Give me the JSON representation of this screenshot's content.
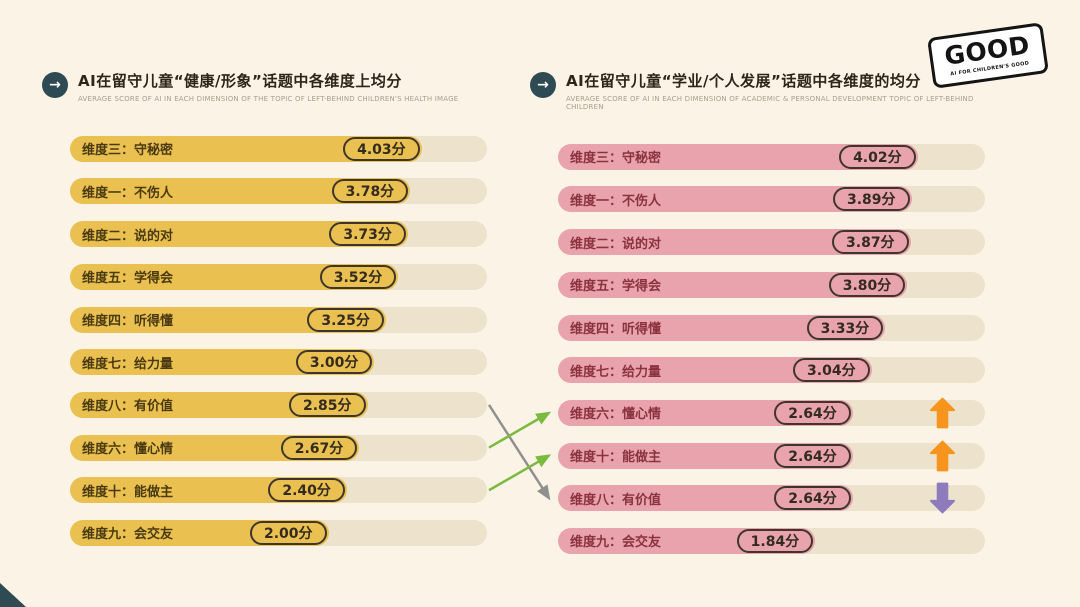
{
  "page": {
    "background": "#FAF3E6"
  },
  "icons": {
    "chart_bullet": "→"
  },
  "logo": {
    "text": "GOOD",
    "tagline": "AI FOR CHILDREN'S GOOD"
  },
  "trend_colors": {
    "up": "#F7941D",
    "down": "#8D7BBE"
  },
  "chart_data": [
    {
      "type": "bar",
      "orientation": "horizontal",
      "title": "AI在留守儿童“健康/形象”话题中各维度上均分",
      "subtitle": "AVERAGE SCORE OF AI IN EACH DIMENSION OF THE TOPIC OF LEFT-BEHIND CHILDREN'S HEALTH IMAGE",
      "unit": "分",
      "xlim": [
        0,
        5
      ],
      "bar_color": "#EAC050",
      "label_color": "#4A3A12",
      "rows": [
        {
          "label": "维度三：守秘密",
          "value": 4.03,
          "display": "4.03分"
        },
        {
          "label": "维度一：不伤人",
          "value": 3.78,
          "display": "3.78分"
        },
        {
          "label": "维度二：说的对",
          "value": 3.73,
          "display": "3.73分"
        },
        {
          "label": "维度五：学得会",
          "value": 3.52,
          "display": "3.52分"
        },
        {
          "label": "维度四：听得懂",
          "value": 3.25,
          "display": "3.25分"
        },
        {
          "label": "维度七：给力量",
          "value": 3.0,
          "display": "3.00分"
        },
        {
          "label": "维度八：有价值",
          "value": 2.85,
          "display": "2.85分"
        },
        {
          "label": "维度六：懂心情",
          "value": 2.67,
          "display": "2.67分"
        },
        {
          "label": "维度十：能做主",
          "value": 2.4,
          "display": "2.40分"
        },
        {
          "label": "维度九：会交友",
          "value": 2.0,
          "display": "2.00分"
        }
      ]
    },
    {
      "type": "bar",
      "orientation": "horizontal",
      "title": "AI在留守儿童“学业/个人发展”话题中各维度的均分",
      "subtitle": "AVERAGE SCORE OF AI IN EACH DIMENSION OF ACADEMIC & PERSONAL DEVELOPMENT TOPIC OF LEFT-BEHIND CHILDREN",
      "unit": "分",
      "xlim": [
        0,
        5
      ],
      "bar_color": "#E9A3AC",
      "label_color": "#8A323E",
      "rows": [
        {
          "label": "维度三：守秘密",
          "value": 4.02,
          "display": "4.02分"
        },
        {
          "label": "维度一：不伤人",
          "value": 3.89,
          "display": "3.89分"
        },
        {
          "label": "维度二：说的对",
          "value": 3.87,
          "display": "3.87分"
        },
        {
          "label": "维度五：学得会",
          "value": 3.8,
          "display": "3.80分"
        },
        {
          "label": "维度四：听得懂",
          "value": 3.33,
          "display": "3.33分"
        },
        {
          "label": "维度七：给力量",
          "value": 3.04,
          "display": "3.04分"
        },
        {
          "label": "维度六：懂心情",
          "value": 2.64,
          "display": "2.64分",
          "trend": "up"
        },
        {
          "label": "维度十：能做主",
          "value": 2.64,
          "display": "2.64分",
          "trend": "up"
        },
        {
          "label": "维度八：有价值",
          "value": 2.64,
          "display": "2.64分",
          "trend": "down"
        },
        {
          "label": "维度九：会交友",
          "value": 1.84,
          "display": "1.84分"
        }
      ]
    }
  ],
  "connectors": [
    {
      "dimension": "维度八：有价值",
      "from_index": 6,
      "to_index": 8,
      "color": "#8F8F8F"
    },
    {
      "dimension": "维度六：懂心情",
      "from_index": 7,
      "to_index": 6,
      "color": "#7CBA3F"
    },
    {
      "dimension": "维度十：能做主",
      "from_index": 8,
      "to_index": 7,
      "color": "#7CBA3F"
    }
  ]
}
